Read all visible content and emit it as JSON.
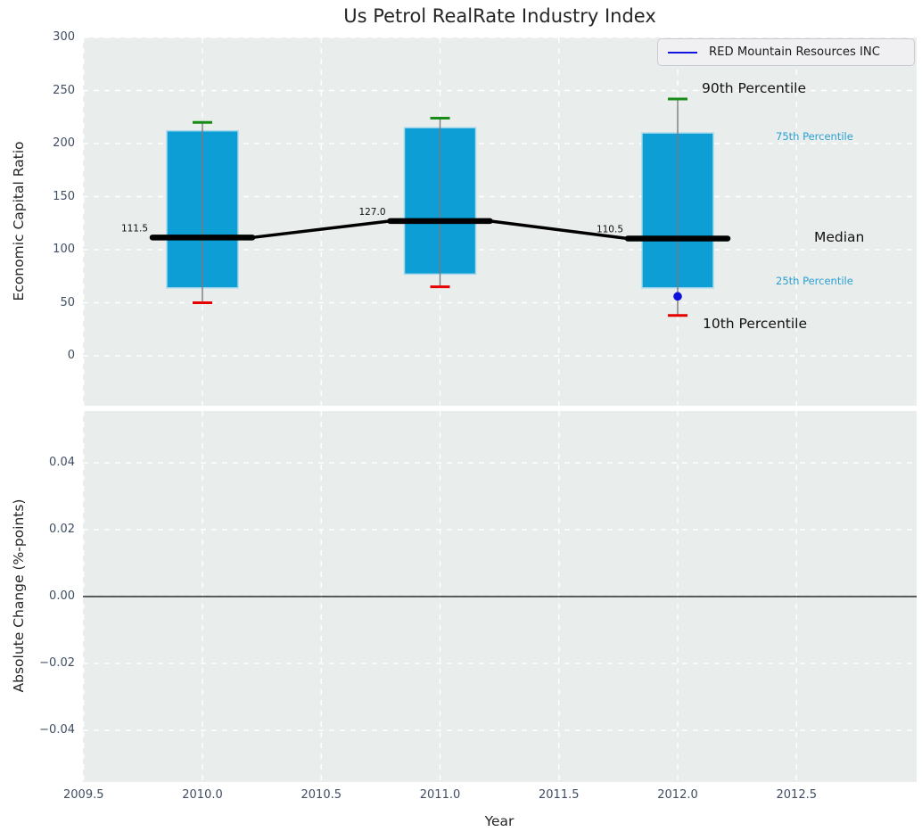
{
  "chart_data": {
    "type": "boxplot",
    "title": "Us Petrol RealRate Industry Index",
    "xlabel": "Year",
    "xlim": [
      2009.5,
      2013.0
    ],
    "grid": true,
    "legend_position": "upper right",
    "series": [
      {
        "name": "RED Mountain Resources INC",
        "color": "#1414e0",
        "points": [
          {
            "x": 2012,
            "y": 56
          }
        ]
      }
    ],
    "xticks": [
      {
        "label": "2009.5",
        "value": 2009.5
      },
      {
        "label": "2010.0",
        "value": 2010.0
      },
      {
        "label": "2010.5",
        "value": 2010.5
      },
      {
        "label": "2011.0",
        "value": 2011.0
      },
      {
        "label": "2011.5",
        "value": 2011.5
      },
      {
        "label": "2012.0",
        "value": 2012.0
      },
      {
        "label": "2012.5",
        "value": 2012.5
      }
    ],
    "top_panel": {
      "ylabel": "Economic Capital Ratio",
      "ylim": [
        -47,
        300
      ],
      "yticks": [
        {
          "label": "300",
          "value": 300
        },
        {
          "label": "250",
          "value": 250
        },
        {
          "label": "200",
          "value": 200
        },
        {
          "label": "150",
          "value": 150
        },
        {
          "label": "100",
          "value": 100
        },
        {
          "label": "50",
          "value": 50
        },
        {
          "label": "0",
          "value": 0
        }
      ],
      "boxes": [
        {
          "year": 2010,
          "p10": 50,
          "p25": 64,
          "median": 111.5,
          "p75": 212,
          "p90": 220
        },
        {
          "year": 2011,
          "p10": 65,
          "p25": 77,
          "median": 127.0,
          "p75": 215,
          "p90": 224
        },
        {
          "year": 2012,
          "p10": 38,
          "p25": 64,
          "median": 110.5,
          "p75": 210,
          "p90": 242
        }
      ],
      "median_value_labels": [
        "111.5",
        "127.0",
        "110.5"
      ]
    },
    "bottom_panel": {
      "ylabel": "Absolute Change (%-points)",
      "ylim": [
        -0.055,
        0.055
      ],
      "yticks": [
        {
          "label": "0.04",
          "value": 0.04
        },
        {
          "label": "0.02",
          "value": 0.02
        },
        {
          "label": "0.00",
          "value": 0.0
        },
        {
          "label": "−0.02",
          "value": -0.02
        },
        {
          "label": "−0.04",
          "value": -0.04
        }
      ],
      "zero_line": 0.0
    },
    "annotations": {
      "p90": {
        "text": "90th Percentile",
        "color": "#121212"
      },
      "p75": {
        "text": "75th Percentile",
        "color": "#2aa0d2"
      },
      "median": {
        "text": "Median",
        "color": "#121212"
      },
      "p25": {
        "text": "25th Percentile",
        "color": "#2aa0d2"
      },
      "p10": {
        "text": "10th Percentile",
        "color": "#121212"
      }
    },
    "colors": {
      "box_fill": "#0d9ed6",
      "box_edge": "#a6d9ec",
      "whisker": "#7a7a7a",
      "cap_high": "#178c17",
      "cap_low": "#e60000",
      "median_line": "#000000",
      "company_point": "#1010dd",
      "panel_bg": "#e9edec",
      "gridline": "#ffffff",
      "tick_text": "#3f4e63"
    }
  }
}
